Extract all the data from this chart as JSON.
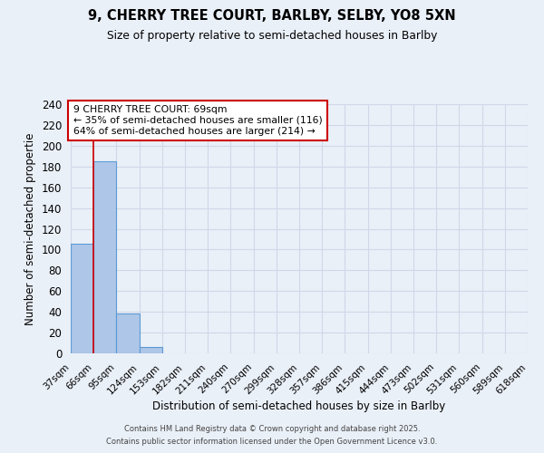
{
  "title_line1": "9, CHERRY TREE COURT, BARLBY, SELBY, YO8 5XN",
  "title_line2": "Size of property relative to semi-detached houses in Barlby",
  "xlabel": "Distribution of semi-detached houses by size in Barlby",
  "ylabel": "Number of semi-detached propertie",
  "bar_values": [
    106,
    185,
    38,
    6,
    0,
    0,
    0,
    0,
    0,
    0,
    0,
    0,
    0,
    0,
    0,
    0,
    0,
    0,
    0
  ],
  "bin_labels": [
    "37sqm",
    "66sqm",
    "95sqm",
    "124sqm",
    "153sqm",
    "182sqm",
    "211sqm",
    "240sqm",
    "270sqm",
    "299sqm",
    "328sqm",
    "357sqm",
    "386sqm",
    "415sqm",
    "444sqm",
    "473sqm",
    "502sqm",
    "531sqm",
    "560sqm",
    "589sqm",
    "618sqm"
  ],
  "bar_color": "#aec6e8",
  "bar_edge_color": "#5b9bd5",
  "grid_color": "#d0d8e8",
  "background_color": "#eaf0f8",
  "property_sqm": 69,
  "pct_smaller": 35,
  "count_smaller": 116,
  "pct_larger": 64,
  "count_larger": 214,
  "annotation_box_color": "#ffffff",
  "annotation_box_edge": "#cc0000",
  "ylim": [
    0,
    240
  ],
  "yticks": [
    0,
    20,
    40,
    60,
    80,
    100,
    120,
    140,
    160,
    180,
    200,
    220,
    240
  ],
  "footnote_line1": "Contains HM Land Registry data © Crown copyright and database right 2025.",
  "footnote_line2": "Contains public sector information licensed under the Open Government Licence v3.0."
}
